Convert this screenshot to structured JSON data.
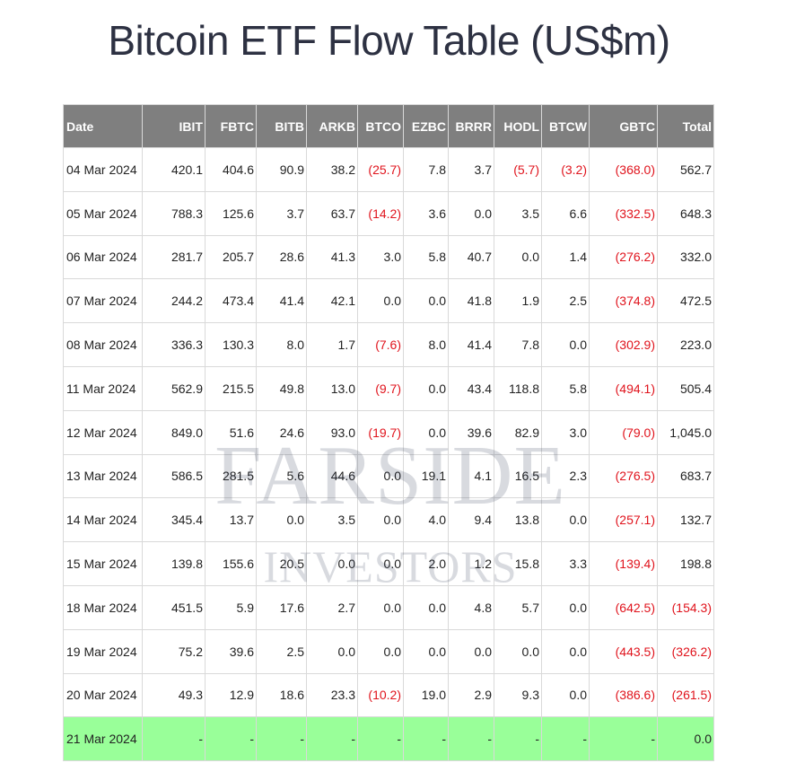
{
  "title": "Bitcoin ETF Flow Table (US$m)",
  "watermark": {
    "line1": "FARSIDE",
    "line2": "INVESTORS"
  },
  "colors": {
    "header_bg": "#7f7f7f",
    "negative": "#e0131c",
    "pending_row": "#99ff99"
  },
  "columns": [
    "Date",
    "IBIT",
    "FBTC",
    "BITB",
    "ARKB",
    "BTCO",
    "EZBC",
    "BRRR",
    "HODL",
    "BTCW",
    "GBTC",
    "Total"
  ],
  "rows": [
    [
      "04 Mar 2024",
      "420.1",
      "404.6",
      "90.9",
      "38.2",
      "(25.7)",
      "7.8",
      "3.7",
      "(5.7)",
      "(3.2)",
      "(368.0)",
      "562.7"
    ],
    [
      "05 Mar 2024",
      "788.3",
      "125.6",
      "3.7",
      "63.7",
      "(14.2)",
      "3.6",
      "0.0",
      "3.5",
      "6.6",
      "(332.5)",
      "648.3"
    ],
    [
      "06 Mar 2024",
      "281.7",
      "205.7",
      "28.6",
      "41.3",
      "3.0",
      "5.8",
      "40.7",
      "0.0",
      "1.4",
      "(276.2)",
      "332.0"
    ],
    [
      "07 Mar 2024",
      "244.2",
      "473.4",
      "41.4",
      "42.1",
      "0.0",
      "0.0",
      "41.8",
      "1.9",
      "2.5",
      "(374.8)",
      "472.5"
    ],
    [
      "08 Mar 2024",
      "336.3",
      "130.3",
      "8.0",
      "1.7",
      "(7.6)",
      "8.0",
      "41.4",
      "7.8",
      "0.0",
      "(302.9)",
      "223.0"
    ],
    [
      "11 Mar 2024",
      "562.9",
      "215.5",
      "49.8",
      "13.0",
      "(9.7)",
      "0.0",
      "43.4",
      "118.8",
      "5.8",
      "(494.1)",
      "505.4"
    ],
    [
      "12 Mar 2024",
      "849.0",
      "51.6",
      "24.6",
      "93.0",
      "(19.7)",
      "0.0",
      "39.6",
      "82.9",
      "3.0",
      "(79.0)",
      "1,045.0"
    ],
    [
      "13 Mar 2024",
      "586.5",
      "281.5",
      "5.6",
      "44.6",
      "0.0",
      "19.1",
      "4.1",
      "16.5",
      "2.3",
      "(276.5)",
      "683.7"
    ],
    [
      "14 Mar 2024",
      "345.4",
      "13.7",
      "0.0",
      "3.5",
      "0.0",
      "4.0",
      "9.4",
      "13.8",
      "0.0",
      "(257.1)",
      "132.7"
    ],
    [
      "15 Mar 2024",
      "139.8",
      "155.6",
      "20.5",
      "0.0",
      "0.0",
      "2.0",
      "1.2",
      "15.8",
      "3.3",
      "(139.4)",
      "198.8"
    ],
    [
      "18 Mar 2024",
      "451.5",
      "5.9",
      "17.6",
      "2.7",
      "0.0",
      "0.0",
      "4.8",
      "5.7",
      "0.0",
      "(642.5)",
      "(154.3)"
    ],
    [
      "19 Mar 2024",
      "75.2",
      "39.6",
      "2.5",
      "0.0",
      "0.0",
      "0.0",
      "0.0",
      "0.0",
      "0.0",
      "(443.5)",
      "(326.2)"
    ],
    [
      "20 Mar 2024",
      "49.3",
      "12.9",
      "18.6",
      "23.3",
      "(10.2)",
      "19.0",
      "2.9",
      "9.3",
      "0.0",
      "(386.6)",
      "(261.5)"
    ],
    [
      "21 Mar 2024",
      "-",
      "-",
      "-",
      "-",
      "-",
      "-",
      "-",
      "-",
      "-",
      "-",
      "0.0"
    ]
  ]
}
